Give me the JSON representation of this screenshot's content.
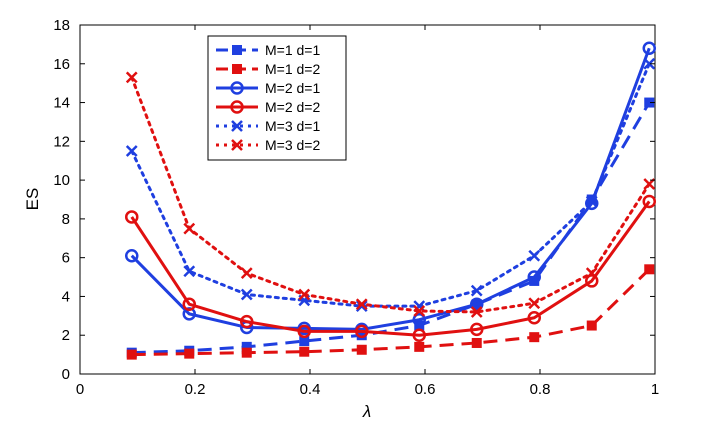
{
  "chart_data": {
    "type": "line",
    "title": "",
    "xlabel": "λ",
    "ylabel": "ES",
    "xlim": [
      0,
      1
    ],
    "ylim": [
      0,
      18
    ],
    "xticks": [
      0,
      0.2,
      0.4,
      0.6,
      0.8,
      1
    ],
    "xtick_labels": [
      "0",
      "0.2",
      "0.4",
      "0.6",
      "0.8",
      "1"
    ],
    "yticks": [
      0,
      2,
      4,
      6,
      8,
      10,
      12,
      14,
      16,
      18
    ],
    "ytick_labels": [
      "0",
      "2",
      "4",
      "6",
      "8",
      "10",
      "12",
      "14",
      "16",
      "18"
    ],
    "grid": false,
    "legend_position": "top-left",
    "x": [
      0.09,
      0.19,
      0.29,
      0.39,
      0.49,
      0.59,
      0.69,
      0.79,
      0.89,
      0.99
    ],
    "series": [
      {
        "name": "M=1 d=1",
        "color": "#1f3fe0",
        "line": "dashed",
        "marker": "filled-square",
        "values": [
          1.1,
          1.2,
          1.4,
          1.7,
          2.0,
          2.5,
          3.6,
          4.8,
          9.0,
          14.0
        ]
      },
      {
        "name": "M=1 d=2",
        "color": "#e01010",
        "line": "dashed",
        "marker": "filled-square",
        "values": [
          1.0,
          1.05,
          1.1,
          1.15,
          1.25,
          1.4,
          1.6,
          1.9,
          2.5,
          5.4
        ]
      },
      {
        "name": "M=2 d=1",
        "color": "#1f3fe0",
        "line": "solid",
        "marker": "circle",
        "values": [
          6.1,
          3.1,
          2.4,
          2.35,
          2.3,
          2.8,
          3.6,
          5.0,
          8.8,
          16.8
        ]
      },
      {
        "name": "M=2 d=2",
        "color": "#e01010",
        "line": "solid",
        "marker": "circle",
        "values": [
          8.1,
          3.6,
          2.7,
          2.2,
          2.2,
          2.0,
          2.3,
          2.9,
          4.8,
          8.9
        ]
      },
      {
        "name": "M=3 d=1",
        "color": "#1f3fe0",
        "line": "dotted",
        "marker": "x",
        "values": [
          11.5,
          5.3,
          4.1,
          3.8,
          3.5,
          3.5,
          4.3,
          6.1,
          8.9,
          16.0
        ]
      },
      {
        "name": "M=3 d=2",
        "color": "#e01010",
        "line": "dotted",
        "marker": "x",
        "values": [
          15.3,
          7.5,
          5.2,
          4.1,
          3.6,
          3.25,
          3.2,
          3.65,
          5.2,
          9.8
        ]
      }
    ]
  }
}
